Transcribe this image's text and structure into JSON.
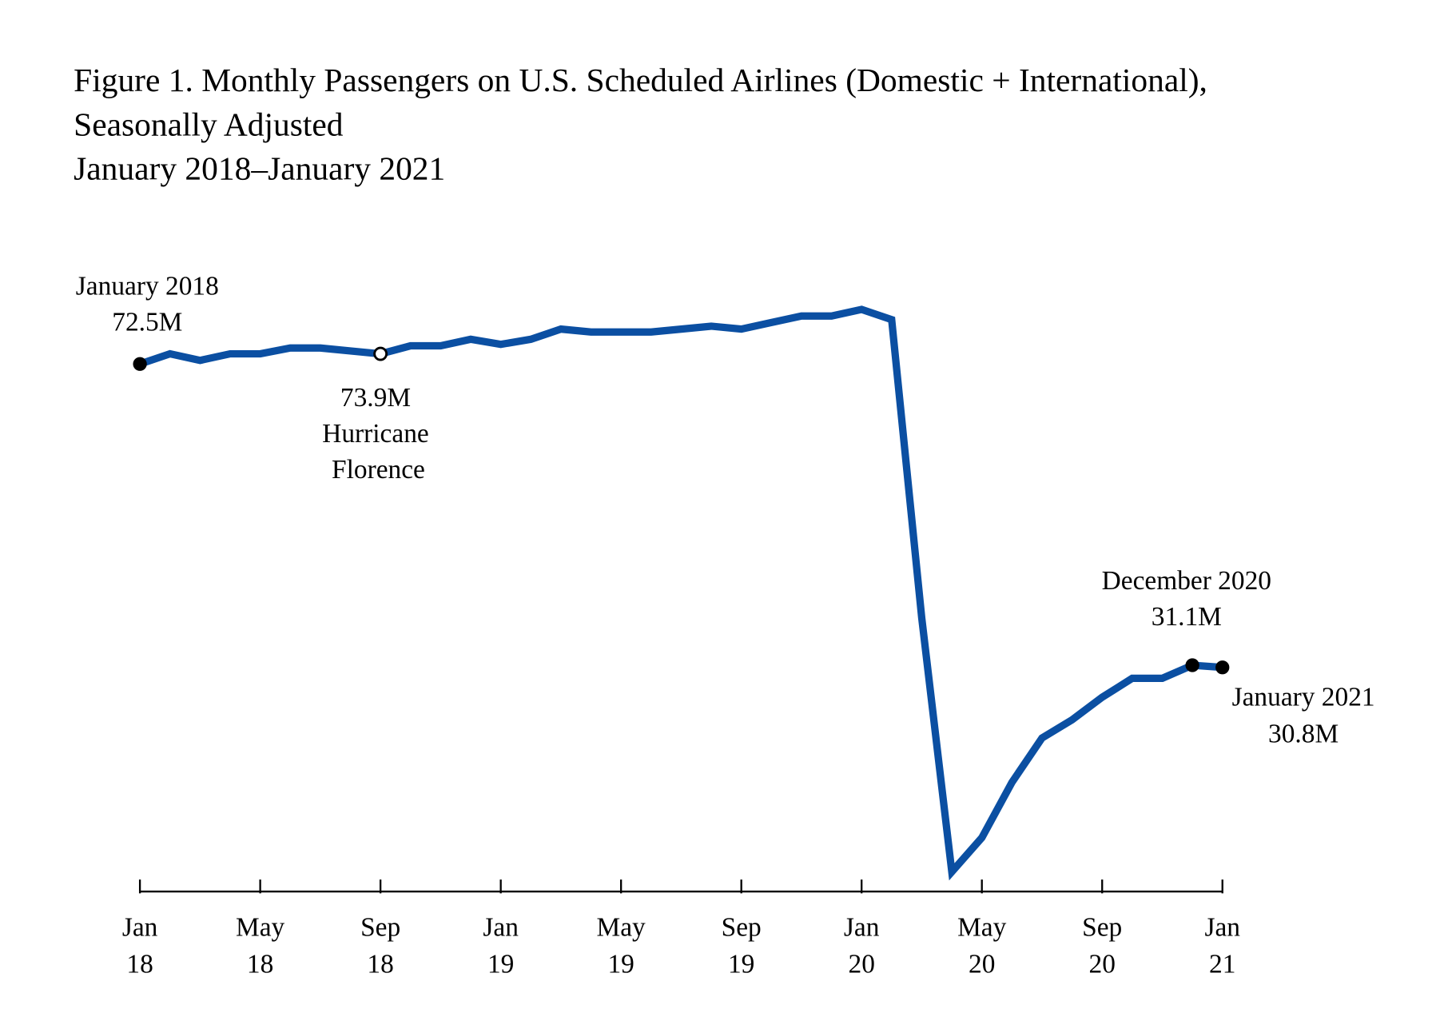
{
  "chart_data": {
    "type": "line",
    "title_lines": [
      "Figure 1. Monthly Passengers on U.S. Scheduled Airlines (Domestic + International),",
      "Seasonally Adjusted",
      "January 2018–January 2021"
    ],
    "xlabel": "",
    "ylabel": "",
    "x": [
      "2018-01",
      "2018-02",
      "2018-03",
      "2018-04",
      "2018-05",
      "2018-06",
      "2018-07",
      "2018-08",
      "2018-09",
      "2018-10",
      "2018-11",
      "2018-12",
      "2019-01",
      "2019-02",
      "2019-03",
      "2019-04",
      "2019-05",
      "2019-06",
      "2019-07",
      "2019-08",
      "2019-09",
      "2019-10",
      "2019-11",
      "2019-12",
      "2020-01",
      "2020-02",
      "2020-03",
      "2020-04",
      "2020-05",
      "2020-06",
      "2020-07",
      "2020-08",
      "2020-09",
      "2020-10",
      "2020-11",
      "2020-12",
      "2021-01"
    ],
    "series": [
      {
        "values": [
          72.5,
          73.9,
          73.0,
          73.9,
          73.9,
          74.7,
          74.7,
          74.3,
          73.9,
          75.0,
          75.0,
          75.9,
          75.2,
          75.9,
          77.3,
          76.9,
          76.9,
          76.9,
          77.3,
          77.7,
          77.3,
          78.2,
          79.1,
          79.1,
          80.0,
          78.6,
          37.6,
          2.7,
          7.4,
          15.0,
          21.1,
          23.6,
          26.7,
          29.3,
          29.3,
          31.1,
          30.8
        ]
      }
    ],
    "ylim": [
      0,
      80
    ],
    "y_axis_visible": false,
    "grid": false,
    "x_ticks": [
      {
        "x": "2018-01",
        "label": [
          "Jan",
          "18"
        ]
      },
      {
        "x": "2018-05",
        "label": [
          "May",
          "18"
        ]
      },
      {
        "x": "2018-09",
        "label": [
          "Sep",
          "18"
        ]
      },
      {
        "x": "2019-01",
        "label": [
          "Jan",
          "19"
        ]
      },
      {
        "x": "2019-05",
        "label": [
          "May",
          "19"
        ]
      },
      {
        "x": "2019-09",
        "label": [
          "Sep",
          "19"
        ]
      },
      {
        "x": "2020-01",
        "label": [
          "Jan",
          "20"
        ]
      },
      {
        "x": "2020-05",
        "label": [
          "May",
          "20"
        ]
      },
      {
        "x": "2020-09",
        "label": [
          "Sep",
          "20"
        ]
      },
      {
        "x": "2021-01",
        "label": [
          "Jan",
          "21"
        ]
      }
    ],
    "annotations": [
      {
        "x": "2018-01",
        "value": 72.5,
        "lines": [
          "January 2018",
          "72.5M"
        ],
        "marker": "filled"
      },
      {
        "x": "2018-09",
        "value": 73.9,
        "lines": [
          "73.9M",
          "Hurricane",
          "Florence"
        ],
        "marker": "open"
      },
      {
        "x": "2020-12",
        "value": 31.1,
        "lines": [
          "December 2020",
          "31.1M"
        ],
        "marker": "filled"
      },
      {
        "x": "2021-01",
        "value": 30.8,
        "lines": [
          "January 2021",
          "30.8M"
        ],
        "marker": "filled"
      }
    ],
    "colors": {
      "series_line": "#0b4fa2",
      "marker": "#000000",
      "background": "#ffffff"
    }
  }
}
